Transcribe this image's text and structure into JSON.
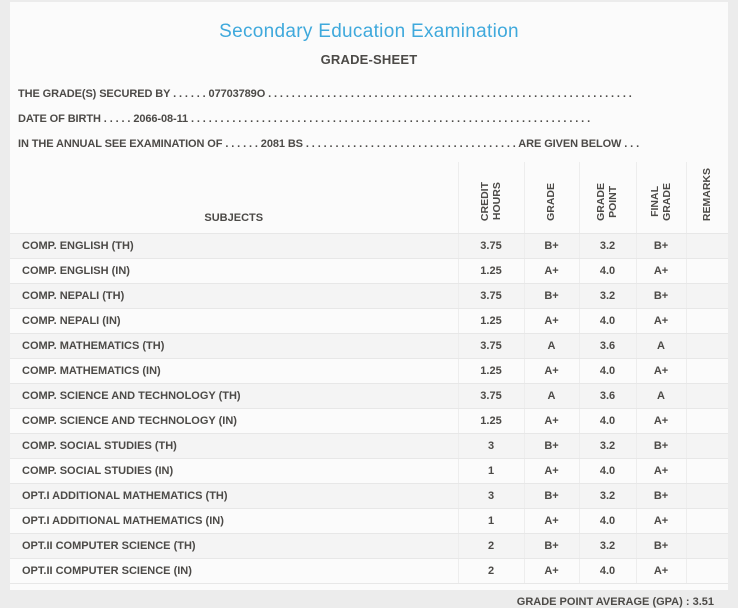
{
  "page": {
    "title": "Secondary Education Examination",
    "subtitle": "GRADE-SHEET"
  },
  "info": {
    "line1": "THE GRADE(S) SECURED BY . . . . . . 07703789O . . . . . . . . . . . . . . . . . . . . . . . . . . . . . . . . . . . . . . . . . . . . . . . . . . . . . . . . . . . . . .",
    "line2": "DATE OF BIRTH . . . . . 2066-08-11 . . . . . . . . . . . . . . . . . . . . . . . . . . . . . . . . . . . . . . . . . . . . . . . . . . . . . . . . . . . . . . . . . . . .",
    "line3": "IN THE ANNUAL SEE EXAMINATION OF . . . . . . 2081 BS . . . . . . . . . . . . . . . . . . . . . . . . . . . . . . . . . . . . ARE GIVEN BELOW . . ."
  },
  "table": {
    "headers": {
      "subjects": "SUBJECTS",
      "credit_hours": "CREDIT\nHOURS",
      "grade": "GRADE",
      "grade_point": "GRADE\nPOINT",
      "final_grade": "FINAL\nGRADE",
      "remarks": "REMARKS"
    },
    "rows": [
      {
        "subject": "COMP. ENGLISH (TH)",
        "credit_hours": "3.75",
        "grade": "B+",
        "grade_point": "3.2",
        "final_grade": "B+",
        "remarks": ""
      },
      {
        "subject": "COMP. ENGLISH (IN)",
        "credit_hours": "1.25",
        "grade": "A+",
        "grade_point": "4.0",
        "final_grade": "A+",
        "remarks": ""
      },
      {
        "subject": "COMP. NEPALI (TH)",
        "credit_hours": "3.75",
        "grade": "B+",
        "grade_point": "3.2",
        "final_grade": "B+",
        "remarks": ""
      },
      {
        "subject": "COMP. NEPALI (IN)",
        "credit_hours": "1.25",
        "grade": "A+",
        "grade_point": "4.0",
        "final_grade": "A+",
        "remarks": ""
      },
      {
        "subject": "COMP. MATHEMATICS (TH)",
        "credit_hours": "3.75",
        "grade": "A",
        "grade_point": "3.6",
        "final_grade": "A",
        "remarks": ""
      },
      {
        "subject": "COMP. MATHEMATICS (IN)",
        "credit_hours": "1.25",
        "grade": "A+",
        "grade_point": "4.0",
        "final_grade": "A+",
        "remarks": ""
      },
      {
        "subject": "COMP. SCIENCE AND TECHNOLOGY (TH)",
        "credit_hours": "3.75",
        "grade": "A",
        "grade_point": "3.6",
        "final_grade": "A",
        "remarks": ""
      },
      {
        "subject": "COMP. SCIENCE AND TECHNOLOGY (IN)",
        "credit_hours": "1.25",
        "grade": "A+",
        "grade_point": "4.0",
        "final_grade": "A+",
        "remarks": ""
      },
      {
        "subject": "COMP. SOCIAL STUDIES (TH)",
        "credit_hours": "3",
        "grade": "B+",
        "grade_point": "3.2",
        "final_grade": "B+",
        "remarks": ""
      },
      {
        "subject": "COMP. SOCIAL STUDIES (IN)",
        "credit_hours": "1",
        "grade": "A+",
        "grade_point": "4.0",
        "final_grade": "A+",
        "remarks": ""
      },
      {
        "subject": "OPT.I ADDITIONAL MATHEMATICS (TH)",
        "credit_hours": "3",
        "grade": "B+",
        "grade_point": "3.2",
        "final_grade": "B+",
        "remarks": ""
      },
      {
        "subject": "OPT.I ADDITIONAL MATHEMATICS (IN)",
        "credit_hours": "1",
        "grade": "A+",
        "grade_point": "4.0",
        "final_grade": "A+",
        "remarks": ""
      },
      {
        "subject": "OPT.II COMPUTER SCIENCE (TH)",
        "credit_hours": "2",
        "grade": "B+",
        "grade_point": "3.2",
        "final_grade": "B+",
        "remarks": ""
      },
      {
        "subject": "OPT.II COMPUTER SCIENCE (IN)",
        "credit_hours": "2",
        "grade": "A+",
        "grade_point": "4.0",
        "final_grade": "A+",
        "remarks": ""
      }
    ]
  },
  "footer": {
    "gpa_label": "GRADE POINT AVERAGE (GPA) :",
    "gpa_value": "3.51"
  },
  "colors": {
    "accent": "#3fa9dc",
    "text": "#4c4a47"
  }
}
